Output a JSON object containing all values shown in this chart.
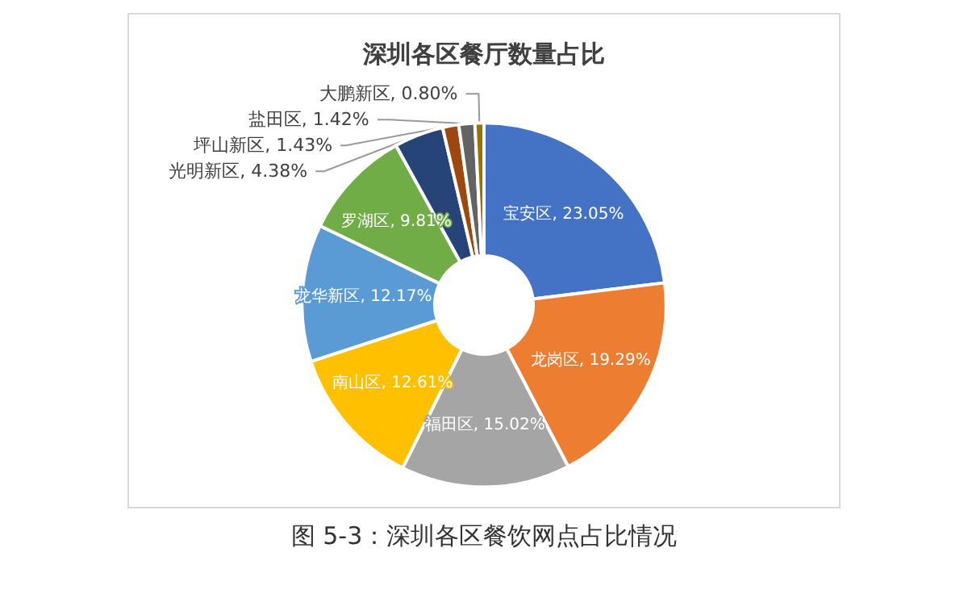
{
  "chart_data": {
    "type": "donut",
    "title": "深圳各区餐厅数量占比",
    "categories": [
      "宝安区",
      "龙岗区",
      "福田区",
      "南山区",
      "龙华新区",
      "罗湖区",
      "光明新区",
      "坪山新区",
      "盐田区",
      "大鹏新区"
    ],
    "values": [
      23.05,
      19.29,
      15.02,
      12.61,
      12.17,
      9.81,
      4.38,
      1.43,
      1.42,
      0.8
    ],
    "colors": [
      "#4472c4",
      "#ed7d31",
      "#a5a5a5",
      "#ffc000",
      "#5b9bd5",
      "#70ad47",
      "#264478",
      "#9e480e",
      "#636363",
      "#997300"
    ],
    "value_labels": [
      "23.05%",
      "19.29%",
      "15.02%",
      "12.61%",
      "12.17%",
      "9.81%",
      "4.38%",
      "1.43%",
      "1.42%",
      "0.80%"
    ],
    "annotations": [
      "图 5-3：深圳各区餐饮网点占比情况"
    ]
  }
}
